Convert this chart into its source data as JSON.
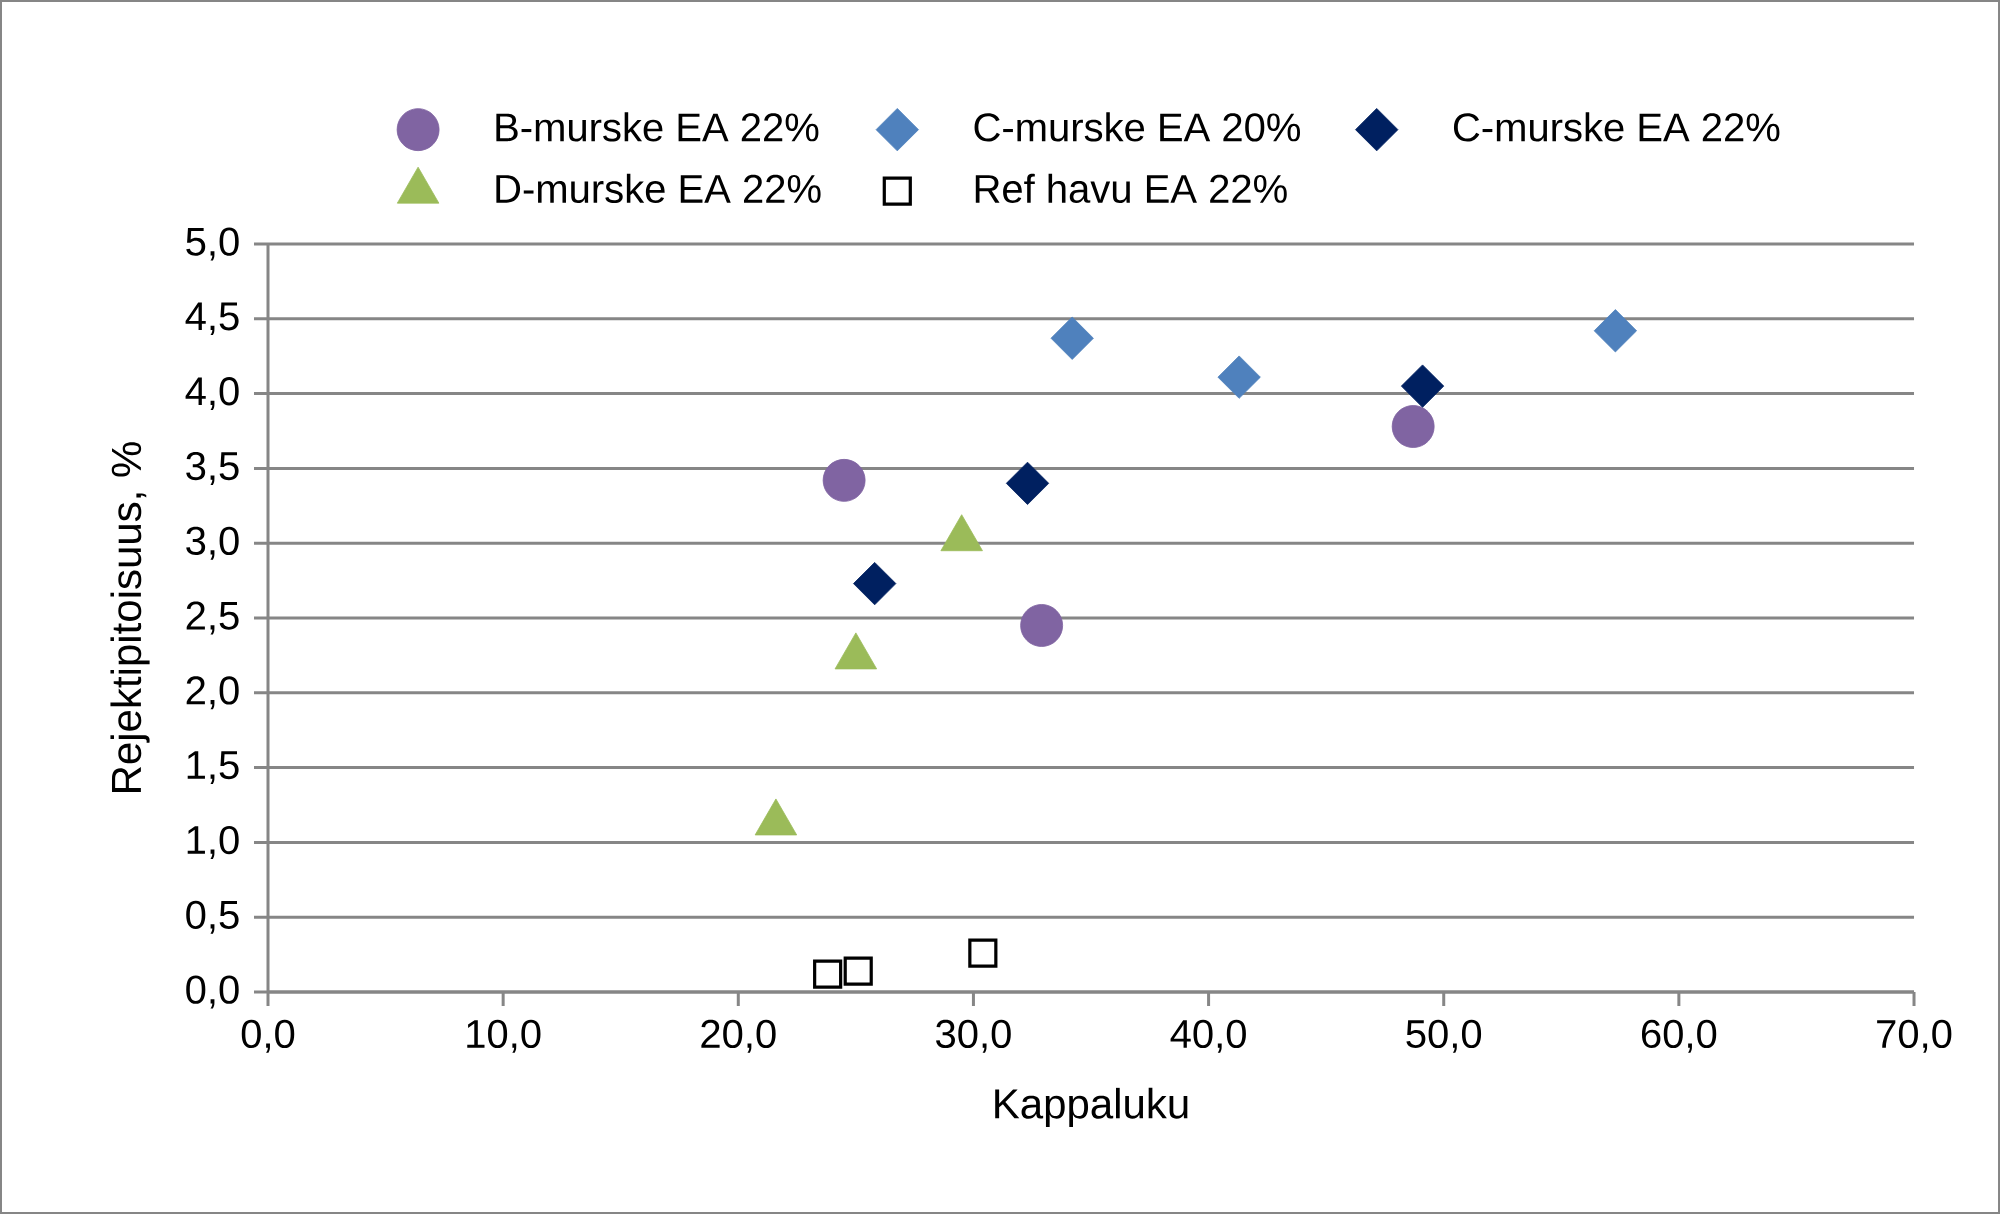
{
  "chart_data": {
    "type": "scatter",
    "xlabel": "Kappaluku",
    "ylabel": "Rejektipitoisuus, %",
    "xlim": [
      0,
      70
    ],
    "ylim": [
      0,
      5
    ],
    "xticks": [
      {
        "value": 0,
        "label": "0,0"
      },
      {
        "value": 10,
        "label": "10,0"
      },
      {
        "value": 20,
        "label": "20,0"
      },
      {
        "value": 30,
        "label": "30,0"
      },
      {
        "value": 40,
        "label": "40,0"
      },
      {
        "value": 50,
        "label": "50,0"
      },
      {
        "value": 60,
        "label": "60,0"
      },
      {
        "value": 70,
        "label": "70,0"
      }
    ],
    "yticks": [
      {
        "value": 0,
        "label": "0,0"
      },
      {
        "value": 0.5,
        "label": "0,5"
      },
      {
        "value": 1,
        "label": "1,0"
      },
      {
        "value": 1.5,
        "label": "1,5"
      },
      {
        "value": 2,
        "label": "2,0"
      },
      {
        "value": 2.5,
        "label": "2,5"
      },
      {
        "value": 3,
        "label": "3,0"
      },
      {
        "value": 3.5,
        "label": "3,5"
      },
      {
        "value": 4,
        "label": "4,0"
      },
      {
        "value": 4.5,
        "label": "4,5"
      },
      {
        "value": 5,
        "label": "5,0"
      }
    ],
    "grid": "y",
    "legend": "top",
    "series": [
      {
        "name": "B-murske EA 22%",
        "color": "#8064a2",
        "marker": "circle",
        "x": [
          24.5,
          32.9,
          48.7
        ],
        "values": [
          3.42,
          2.45,
          3.78
        ]
      },
      {
        "name": "C-murske EA 20%",
        "color": "#4f81bd",
        "marker": "diamond",
        "x": [
          34.2,
          41.3,
          57.3
        ],
        "values": [
          4.37,
          4.11,
          4.42
        ]
      },
      {
        "name": "C-murske EA 22%",
        "color": "#002060",
        "marker": "diamond",
        "x": [
          25.8,
          32.3,
          49.1
        ],
        "values": [
          2.73,
          3.4,
          4.05
        ]
      },
      {
        "name": "D-murske EA 22%",
        "color": "#9bbb59",
        "marker": "triangle",
        "x": [
          21.6,
          25.0,
          29.5
        ],
        "values": [
          1.13,
          2.24,
          3.03
        ]
      },
      {
        "name": "Ref havu EA 22%",
        "color": "#000000",
        "marker": "square",
        "x": [
          23.8,
          25.1,
          30.4
        ],
        "values": [
          0.12,
          0.14,
          0.26
        ]
      }
    ]
  }
}
